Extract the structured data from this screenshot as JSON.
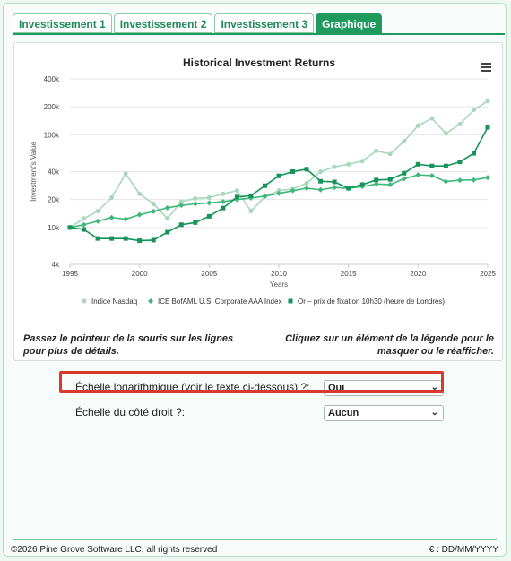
{
  "tabs": [
    {
      "label": "Investissement 1",
      "active": false
    },
    {
      "label": "Investissement 2",
      "active": false
    },
    {
      "label": "Investissement 3",
      "active": false
    },
    {
      "label": "Graphique",
      "active": true
    }
  ],
  "chart_data": {
    "type": "line",
    "title": "Historical Investment Returns",
    "xlabel": "Years",
    "ylabel": "Investment's Value",
    "y_scale": "log",
    "ylim": [
      4000,
      400000
    ],
    "xlim": [
      1995,
      2025
    ],
    "x_ticks": [
      1995,
      2000,
      2005,
      2010,
      2015,
      2020,
      2025
    ],
    "y_ticks": [
      {
        "value": 4000,
        "label": "4k"
      },
      {
        "value": 10000,
        "label": "10k"
      },
      {
        "value": 20000,
        "label": "20k"
      },
      {
        "value": 40000,
        "label": "40k"
      },
      {
        "value": 100000,
        "label": "100k"
      },
      {
        "value": 200000,
        "label": "200k"
      },
      {
        "value": 400000,
        "label": "400k"
      }
    ],
    "legend_position": "bottom",
    "x": [
      1995,
      1996,
      1997,
      1998,
      1999,
      2000,
      2001,
      2002,
      2003,
      2004,
      2005,
      2006,
      2007,
      2008,
      2009,
      2010,
      2011,
      2012,
      2013,
      2014,
      2015,
      2016,
      2017,
      2018,
      2019,
      2020,
      2021,
      2022,
      2023,
      2024,
      2025
    ],
    "series": [
      {
        "name": "Indice Nasdaq",
        "color": "#a8d8bc",
        "marker": "circle",
        "values": [
          10000,
          12500,
          15000,
          21000,
          38000,
          23000,
          18000,
          12500,
          19000,
          20500,
          21000,
          23000,
          25000,
          15000,
          21500,
          25000,
          26000,
          30000,
          40000,
          45000,
          48000,
          52000,
          67000,
          62000,
          85000,
          125000,
          150000,
          103000,
          130000,
          185000,
          230000
        ]
      },
      {
        "name": "ICE BofAML U.S. Corporate AAA Index",
        "color": "#3db87a",
        "marker": "diamond",
        "values": [
          10000,
          10700,
          11700,
          12800,
          12300,
          13700,
          14900,
          16300,
          17300,
          18000,
          18400,
          19000,
          20000,
          20800,
          21800,
          23300,
          24900,
          26500,
          25500,
          27000,
          26400,
          27600,
          29400,
          29000,
          33600,
          36900,
          36200,
          31300,
          32300,
          32600,
          34500
        ]
      },
      {
        "name": "Or – prix de fixation 10h30 (heure de Londres)",
        "color": "#15935a",
        "marker": "square",
        "values": [
          10000,
          9500,
          7600,
          7600,
          7600,
          7200,
          7300,
          8900,
          10700,
          11300,
          13200,
          16200,
          21300,
          22000,
          28200,
          36000,
          40000,
          42500,
          31500,
          31000,
          26500,
          29000,
          32500,
          33000,
          38500,
          48000,
          46000,
          46000,
          51000,
          63000,
          120000
        ]
      }
    ]
  },
  "hints": {
    "left": "Passez le pointeur de la souris sur les lignes pour plus de détails.",
    "right": "Cliquez sur un élément de la légende pour le masquer ou le réafficher."
  },
  "options": {
    "log_scale": {
      "label": "Échelle logarithmique (voir le texte ci-dessous) ?:",
      "value": "Oui"
    },
    "right_scale": {
      "label": "Échelle du côté droit ?:",
      "value": "Aucun"
    }
  },
  "footer": {
    "copyright": "©2026 Pine Grove Software LLC, all rights reserved",
    "currency_format": "€ : DD/MM/YYYY"
  },
  "icons": {
    "menu": "hamburger-menu-icon",
    "dropdown": "chevron-down-icon"
  }
}
